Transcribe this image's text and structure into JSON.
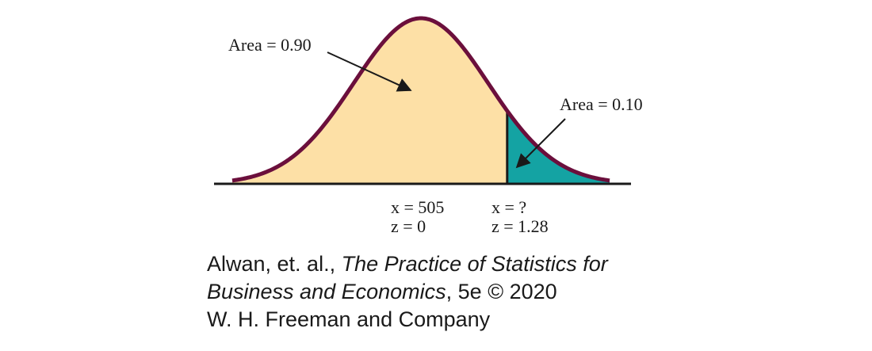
{
  "diagram": {
    "colors": {
      "body_fill": "#fde0a6",
      "tail_fill": "#14a3a3",
      "curve": "#6b0f3c",
      "axis": "#1a1a1a",
      "text": "#1a1a1a"
    },
    "labels": {
      "area_left": "Area = 0.90",
      "area_right": "Area = 0.10",
      "center_x": "x = 505",
      "center_z": "z = 0",
      "cut_x": "x = ?",
      "cut_z": "z = 1.28"
    }
  },
  "credit": {
    "line1_plain": "Alwan, et. al., ",
    "line1_italic": "The Practice of Statistics for",
    "line2_italic": "Business and Economics",
    "line2_plain": ", 5e © 2020",
    "line3": "W. H. Freeman and Company"
  }
}
